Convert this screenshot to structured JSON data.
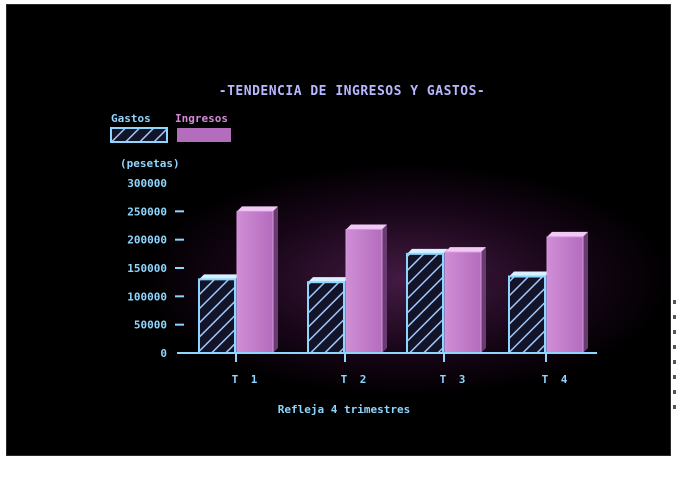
{
  "chart_data": {
    "type": "bar",
    "title": "-TENDENCIA DE INGRESOS Y GASTOS-",
    "ylabel": "(pesetas)",
    "xlabel": "Refleja 4 trimestres",
    "categories": [
      "T 1",
      "T 2",
      "T 3",
      "T 4"
    ],
    "yticks": [
      "300000",
      "250000",
      "200000",
      "150000",
      "100000",
      "50000",
      "0"
    ],
    "ylim": [
      0,
      300000
    ],
    "legend_position": "top-left",
    "series": [
      {
        "name": "Gastos",
        "values": [
          130000,
          125000,
          175000,
          135000
        ],
        "color": "#8fd6ff",
        "pattern": "hatched"
      },
      {
        "name": "Ingresos",
        "values": [
          250000,
          218000,
          178000,
          205000
        ],
        "color": "#c07ac8",
        "pattern": "solid"
      }
    ]
  }
}
